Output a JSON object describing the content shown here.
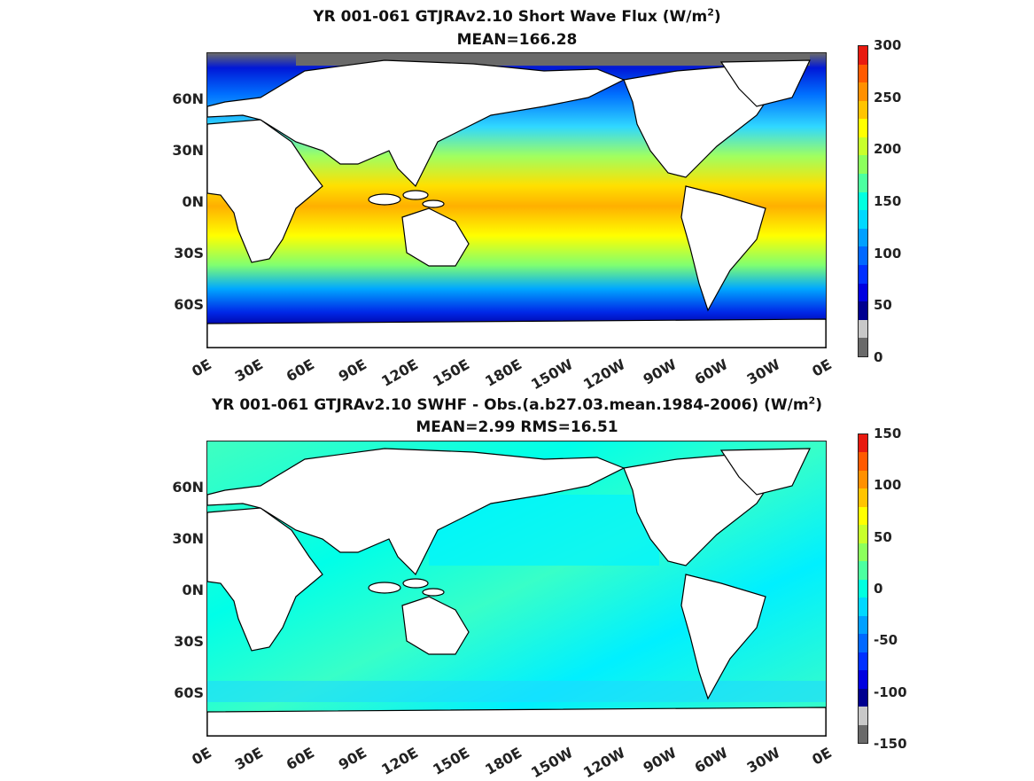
{
  "panels": [
    {
      "title_prefix": "YR 001-061 GTJRAv2.10  Short Wave Flux (W/m",
      "title_sup": "2",
      "title_suffix": ")",
      "subtitle": "MEAN=166.28",
      "lat_labels": [
        "60N",
        "30N",
        "0N",
        "30S",
        "60S"
      ],
      "lon_labels": [
        "0E",
        "30E",
        "60E",
        "90E",
        "120E",
        "150E",
        "180E",
        "150W",
        "120W",
        "90W",
        "60W",
        "30W",
        "0E"
      ],
      "colorbar_labels": [
        "300",
        "250",
        "200",
        "150",
        "100",
        "50",
        "0"
      ],
      "colorbar_colors": [
        "#e81a10",
        "#ff5a00",
        "#ff9000",
        "#ffc400",
        "#ffff00",
        "#c8ff2a",
        "#8cff5c",
        "#4cffa0",
        "#00ffe0",
        "#00d8ff",
        "#00a0ff",
        "#0068ff",
        "#0030ff",
        "#0000e0",
        "#000090",
        "#c8c8c8",
        "#6a6a6a"
      ],
      "ocean_color": "#3fb0ff",
      "land_color": "#ffffff"
    },
    {
      "title_prefix": "YR 001-061 GTJRAv2.10 SWHF - Obs.(a.b27.03.mean.1984-2006) (W/m",
      "title_sup": "2",
      "title_suffix": ")",
      "subtitle": "MEAN=2.99 RMS=16.51",
      "lat_labels": [
        "60N",
        "30N",
        "0N",
        "30S",
        "60S"
      ],
      "lon_labels": [
        "0E",
        "30E",
        "60E",
        "90E",
        "120E",
        "150E",
        "180E",
        "150W",
        "120W",
        "90W",
        "60W",
        "30W",
        "0E"
      ],
      "colorbar_labels": [
        "150",
        "100",
        "50",
        "0",
        "-50",
        "-100",
        "-150"
      ],
      "colorbar_colors": [
        "#e81a10",
        "#ff5a00",
        "#ff9000",
        "#ffc400",
        "#ffff00",
        "#c8ff2a",
        "#8cff5c",
        "#4cffa0",
        "#00ffe0",
        "#00d8ff",
        "#00a0ff",
        "#0068ff",
        "#0030ff",
        "#0000e0",
        "#000090",
        "#c8c8c8",
        "#6a6a6a"
      ],
      "ocean_color": "#36ffd0",
      "land_color": "#ffffff"
    }
  ]
}
